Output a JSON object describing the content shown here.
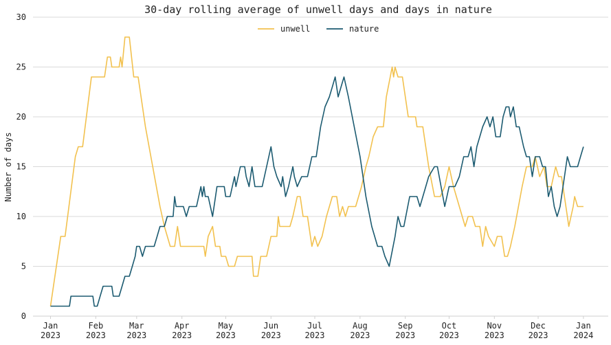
{
  "chart_data": {
    "type": "line",
    "title": "30-day rolling average of unwell days and days in nature",
    "xlabel": "",
    "ylabel": "Number of days",
    "ylim": [
      0,
      30
    ],
    "xlim": [
      "2022-12-20",
      "2024-01-18"
    ],
    "yticks": [
      0,
      5,
      10,
      15,
      20,
      25,
      30
    ],
    "xticks": [
      {
        "date": "2023-01-01",
        "label": [
          "Jan",
          "2023"
        ]
      },
      {
        "date": "2023-02-01",
        "label": [
          "Feb",
          "2023"
        ]
      },
      {
        "date": "2023-03-01",
        "label": [
          "Mar",
          "2023"
        ]
      },
      {
        "date": "2023-04-01",
        "label": [
          "Apr",
          "2023"
        ]
      },
      {
        "date": "2023-05-01",
        "label": [
          "May",
          "2023"
        ]
      },
      {
        "date": "2023-06-01",
        "label": [
          "Jun",
          "2023"
        ]
      },
      {
        "date": "2023-07-01",
        "label": [
          "Jul",
          "2023"
        ]
      },
      {
        "date": "2023-08-01",
        "label": [
          "Aug",
          "2023"
        ]
      },
      {
        "date": "2023-09-01",
        "label": [
          "Sep",
          "2023"
        ]
      },
      {
        "date": "2023-10-01",
        "label": [
          "Oct",
          "2023"
        ]
      },
      {
        "date": "2023-11-01",
        "label": [
          "Nov",
          "2023"
        ]
      },
      {
        "date": "2023-12-01",
        "label": [
          "Dec",
          "2023"
        ]
      },
      {
        "date": "2024-01-01",
        "label": [
          "Jan",
          "2024"
        ]
      }
    ],
    "grid": "horizontal",
    "legend_position": "top-center",
    "series": [
      {
        "name": "unwell",
        "color": "#f2c14e",
        "points": [
          [
            "2023-01-01",
            1
          ],
          [
            "2023-01-08",
            8
          ],
          [
            "2023-01-11",
            8
          ],
          [
            "2023-01-18",
            16
          ],
          [
            "2023-01-20",
            17
          ],
          [
            "2023-01-23",
            17
          ],
          [
            "2023-01-29",
            24
          ],
          [
            "2023-02-07",
            24
          ],
          [
            "2023-02-09",
            26
          ],
          [
            "2023-02-11",
            26
          ],
          [
            "2023-02-12",
            25
          ],
          [
            "2023-02-17",
            25
          ],
          [
            "2023-02-18",
            26
          ],
          [
            "2023-02-19",
            25
          ],
          [
            "2023-02-21",
            28
          ],
          [
            "2023-02-24",
            28
          ],
          [
            "2023-02-27",
            24
          ],
          [
            "2023-03-02",
            24
          ],
          [
            "2023-03-07",
            19
          ],
          [
            "2023-03-12",
            15
          ],
          [
            "2023-03-17",
            11
          ],
          [
            "2023-03-20",
            9
          ],
          [
            "2023-03-24",
            7
          ],
          [
            "2023-03-27",
            7
          ],
          [
            "2023-03-29",
            9
          ],
          [
            "2023-03-31",
            7
          ],
          [
            "2023-04-16",
            7
          ],
          [
            "2023-04-17",
            6
          ],
          [
            "2023-04-19",
            8
          ],
          [
            "2023-04-22",
            9
          ],
          [
            "2023-04-24",
            7
          ],
          [
            "2023-04-27",
            7
          ],
          [
            "2023-04-28",
            6
          ],
          [
            "2023-05-01",
            6
          ],
          [
            "2023-05-03",
            5
          ],
          [
            "2023-05-07",
            5
          ],
          [
            "2023-05-09",
            6
          ],
          [
            "2023-05-19",
            6
          ],
          [
            "2023-05-20",
            4
          ],
          [
            "2023-05-23",
            4
          ],
          [
            "2023-05-25",
            6
          ],
          [
            "2023-05-29",
            6
          ],
          [
            "2023-06-01",
            8
          ],
          [
            "2023-06-05",
            8
          ],
          [
            "2023-06-06",
            10
          ],
          [
            "2023-06-07",
            9
          ],
          [
            "2023-06-14",
            9
          ],
          [
            "2023-06-16",
            10
          ],
          [
            "2023-06-19",
            12
          ],
          [
            "2023-06-21",
            12
          ],
          [
            "2023-06-23",
            10
          ],
          [
            "2023-06-26",
            10
          ],
          [
            "2023-06-29",
            7
          ],
          [
            "2023-07-01",
            8
          ],
          [
            "2023-07-03",
            7
          ],
          [
            "2023-07-06",
            8
          ],
          [
            "2023-07-09",
            10
          ],
          [
            "2023-07-13",
            12
          ],
          [
            "2023-07-16",
            12
          ],
          [
            "2023-07-18",
            10
          ],
          [
            "2023-07-20",
            11
          ],
          [
            "2023-07-22",
            10
          ],
          [
            "2023-07-24",
            11
          ],
          [
            "2023-07-29",
            11
          ],
          [
            "2023-08-02",
            13
          ],
          [
            "2023-08-05",
            15
          ],
          [
            "2023-08-07",
            16
          ],
          [
            "2023-08-10",
            18
          ],
          [
            "2023-08-13",
            19
          ],
          [
            "2023-08-17",
            19
          ],
          [
            "2023-08-19",
            22
          ],
          [
            "2023-08-23",
            25
          ],
          [
            "2023-08-24",
            24
          ],
          [
            "2023-08-25",
            25
          ],
          [
            "2023-08-27",
            24
          ],
          [
            "2023-08-30",
            24
          ],
          [
            "2023-09-03",
            20
          ],
          [
            "2023-09-08",
            20
          ],
          [
            "2023-09-09",
            19
          ],
          [
            "2023-09-13",
            19
          ],
          [
            "2023-09-17",
            15
          ],
          [
            "2023-09-21",
            12
          ],
          [
            "2023-09-25",
            12
          ],
          [
            "2023-09-28",
            13
          ],
          [
            "2023-10-01",
            15
          ],
          [
            "2023-10-04",
            13
          ],
          [
            "2023-10-08",
            11
          ],
          [
            "2023-10-12",
            9
          ],
          [
            "2023-10-14",
            10
          ],
          [
            "2023-10-17",
            10
          ],
          [
            "2023-10-19",
            9
          ],
          [
            "2023-10-22",
            9
          ],
          [
            "2023-10-24",
            7
          ],
          [
            "2023-10-26",
            9
          ],
          [
            "2023-10-28",
            8
          ],
          [
            "2023-11-01",
            7
          ],
          [
            "2023-11-03",
            8
          ],
          [
            "2023-11-06",
            8
          ],
          [
            "2023-11-08",
            6
          ],
          [
            "2023-11-10",
            6
          ],
          [
            "2023-11-12",
            7
          ],
          [
            "2023-11-15",
            9
          ],
          [
            "2023-11-20",
            13
          ],
          [
            "2023-11-23",
            15
          ],
          [
            "2023-11-27",
            15
          ],
          [
            "2023-11-29",
            16
          ],
          [
            "2023-12-02",
            14
          ],
          [
            "2023-12-05",
            15
          ],
          [
            "2023-12-07",
            13
          ],
          [
            "2023-12-10",
            13
          ],
          [
            "2023-12-13",
            15
          ],
          [
            "2023-12-15",
            14
          ],
          [
            "2023-12-17",
            14
          ],
          [
            "2023-12-21",
            10
          ],
          [
            "2023-12-22",
            9
          ],
          [
            "2023-12-25",
            11
          ],
          [
            "2023-12-26",
            12
          ],
          [
            "2023-12-28",
            11
          ],
          [
            "2024-01-01",
            11
          ]
        ]
      },
      {
        "name": "nature",
        "color": "#1b5a70",
        "points": [
          [
            "2023-01-01",
            1
          ],
          [
            "2023-01-14",
            1
          ],
          [
            "2023-01-15",
            2
          ],
          [
            "2023-01-30",
            2
          ],
          [
            "2023-01-31",
            1
          ],
          [
            "2023-02-02",
            1
          ],
          [
            "2023-02-04",
            2
          ],
          [
            "2023-02-06",
            3
          ],
          [
            "2023-02-12",
            3
          ],
          [
            "2023-02-13",
            2
          ],
          [
            "2023-02-17",
            2
          ],
          [
            "2023-02-19",
            3
          ],
          [
            "2023-02-21",
            4
          ],
          [
            "2023-02-24",
            4
          ],
          [
            "2023-02-26",
            5
          ],
          [
            "2023-02-28",
            6
          ],
          [
            "2023-03-01",
            7
          ],
          [
            "2023-03-03",
            7
          ],
          [
            "2023-03-05",
            6
          ],
          [
            "2023-03-07",
            7
          ],
          [
            "2023-03-13",
            7
          ],
          [
            "2023-03-15",
            8
          ],
          [
            "2023-03-17",
            9
          ],
          [
            "2023-03-20",
            9
          ],
          [
            "2023-03-22",
            10
          ],
          [
            "2023-03-26",
            10
          ],
          [
            "2023-03-27",
            12
          ],
          [
            "2023-03-28",
            11
          ],
          [
            "2023-04-02",
            11
          ],
          [
            "2023-04-04",
            10
          ],
          [
            "2023-04-06",
            11
          ],
          [
            "2023-04-11",
            11
          ],
          [
            "2023-04-14",
            13
          ],
          [
            "2023-04-15",
            12
          ],
          [
            "2023-04-16",
            13
          ],
          [
            "2023-04-17",
            12
          ],
          [
            "2023-04-19",
            12
          ],
          [
            "2023-04-22",
            10
          ],
          [
            "2023-04-25",
            13
          ],
          [
            "2023-04-30",
            13
          ],
          [
            "2023-05-01",
            12
          ],
          [
            "2023-05-04",
            12
          ],
          [
            "2023-05-07",
            14
          ],
          [
            "2023-05-08",
            13
          ],
          [
            "2023-05-11",
            15
          ],
          [
            "2023-05-14",
            15
          ],
          [
            "2023-05-15",
            14
          ],
          [
            "2023-05-17",
            13
          ],
          [
            "2023-05-19",
            15
          ],
          [
            "2023-05-21",
            13
          ],
          [
            "2023-05-26",
            13
          ],
          [
            "2023-05-29",
            15
          ],
          [
            "2023-06-01",
            17
          ],
          [
            "2023-06-03",
            15
          ],
          [
            "2023-06-05",
            14
          ],
          [
            "2023-06-08",
            13
          ],
          [
            "2023-06-09",
            14
          ],
          [
            "2023-06-11",
            12
          ],
          [
            "2023-06-13",
            13
          ],
          [
            "2023-06-16",
            15
          ],
          [
            "2023-06-17",
            14
          ],
          [
            "2023-06-19",
            13
          ],
          [
            "2023-06-22",
            14
          ],
          [
            "2023-06-26",
            14
          ],
          [
            "2023-06-29",
            16
          ],
          [
            "2023-07-02",
            16
          ],
          [
            "2023-07-05",
            19
          ],
          [
            "2023-07-08",
            21
          ],
          [
            "2023-07-11",
            22
          ],
          [
            "2023-07-13",
            23
          ],
          [
            "2023-07-15",
            24
          ],
          [
            "2023-07-17",
            22
          ],
          [
            "2023-07-19",
            23
          ],
          [
            "2023-07-21",
            24
          ],
          [
            "2023-07-24",
            22
          ],
          [
            "2023-07-28",
            19
          ],
          [
            "2023-08-01",
            16
          ],
          [
            "2023-08-05",
            12
          ],
          [
            "2023-08-09",
            9
          ],
          [
            "2023-08-13",
            7
          ],
          [
            "2023-08-16",
            7
          ],
          [
            "2023-08-18",
            6
          ],
          [
            "2023-08-21",
            5
          ],
          [
            "2023-08-25",
            8
          ],
          [
            "2023-08-27",
            10
          ],
          [
            "2023-08-29",
            9
          ],
          [
            "2023-08-31",
            9
          ],
          [
            "2023-09-04",
            12
          ],
          [
            "2023-09-09",
            12
          ],
          [
            "2023-09-11",
            11
          ],
          [
            "2023-09-15",
            13
          ],
          [
            "2023-09-17",
            14
          ],
          [
            "2023-09-21",
            15
          ],
          [
            "2023-09-23",
            15
          ],
          [
            "2023-09-28",
            11
          ],
          [
            "2023-10-01",
            13
          ],
          [
            "2023-10-05",
            13
          ],
          [
            "2023-10-08",
            14
          ],
          [
            "2023-10-11",
            16
          ],
          [
            "2023-10-14",
            16
          ],
          [
            "2023-10-16",
            17
          ],
          [
            "2023-10-18",
            15
          ],
          [
            "2023-10-20",
            17
          ],
          [
            "2023-10-24",
            19
          ],
          [
            "2023-10-27",
            20
          ],
          [
            "2023-10-29",
            19
          ],
          [
            "2023-10-31",
            20
          ],
          [
            "2023-11-02",
            18
          ],
          [
            "2023-11-05",
            18
          ],
          [
            "2023-11-07",
            20
          ],
          [
            "2023-11-09",
            21
          ],
          [
            "2023-11-11",
            21
          ],
          [
            "2023-11-12",
            20
          ],
          [
            "2023-11-14",
            21
          ],
          [
            "2023-11-16",
            19
          ],
          [
            "2023-11-18",
            19
          ],
          [
            "2023-11-21",
            17
          ],
          [
            "2023-11-23",
            16
          ],
          [
            "2023-11-25",
            16
          ],
          [
            "2023-11-27",
            14
          ],
          [
            "2023-11-29",
            16
          ],
          [
            "2023-12-02",
            16
          ],
          [
            "2023-12-04",
            15
          ],
          [
            "2023-12-06",
            15
          ],
          [
            "2023-12-08",
            12
          ],
          [
            "2023-12-10",
            13
          ],
          [
            "2023-12-12",
            11
          ],
          [
            "2023-12-14",
            10
          ],
          [
            "2023-12-16",
            11
          ],
          [
            "2023-12-19",
            14
          ],
          [
            "2023-12-21",
            16
          ],
          [
            "2023-12-23",
            15
          ],
          [
            "2023-12-28",
            15
          ],
          [
            "2023-12-30",
            16
          ],
          [
            "2024-01-01",
            17
          ]
        ]
      }
    ]
  }
}
